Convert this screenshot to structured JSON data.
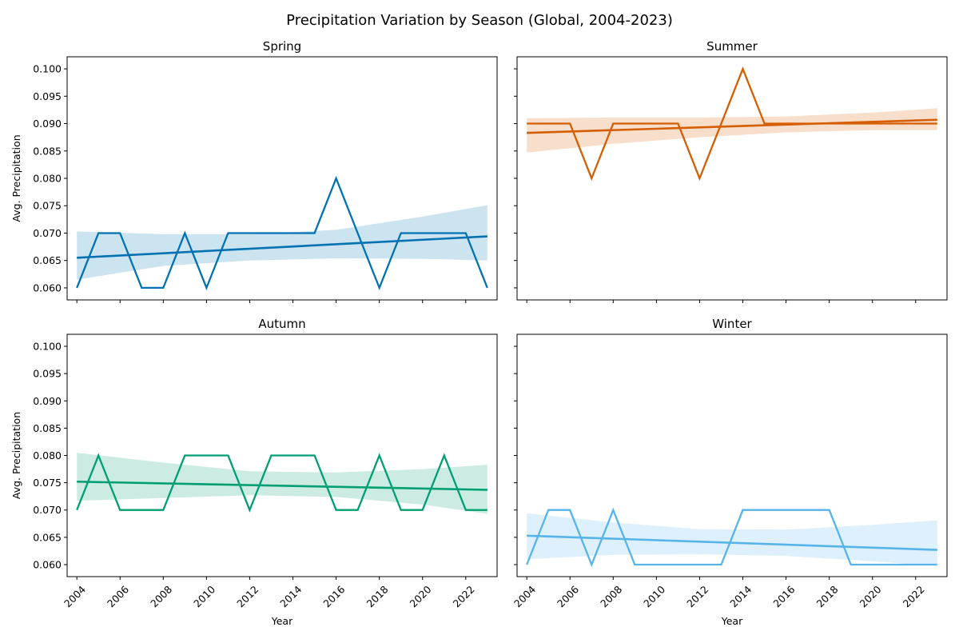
{
  "figure": {
    "title": "Precipitation Variation by Season (Global, 2004-2023)"
  },
  "chart_data": [
    {
      "type": "line",
      "title": "Spring",
      "xlabel": "",
      "ylabel": "Avg. Precipitation",
      "color": "#0072b2",
      "x": [
        2004,
        2005,
        2006,
        2007,
        2008,
        2009,
        2010,
        2011,
        2012,
        2013,
        2014,
        2015,
        2016,
        2017,
        2018,
        2019,
        2020,
        2021,
        2022,
        2023
      ],
      "values": [
        0.06,
        0.07,
        0.07,
        0.06,
        0.06,
        0.07,
        0.06,
        0.07,
        0.07,
        0.07,
        0.07,
        0.07,
        0.08,
        0.07,
        0.06,
        0.07,
        0.07,
        0.07,
        0.07,
        0.06
      ],
      "trend": [
        0.0655,
        0.0694
      ],
      "band": {
        "x": [
          2004,
          2008,
          2012,
          2016,
          2020,
          2023
        ],
        "lower": [
          0.0615,
          0.064,
          0.065,
          0.0654,
          0.0653,
          0.065
        ],
        "upper": [
          0.0703,
          0.0698,
          0.0698,
          0.0706,
          0.073,
          0.0751
        ]
      },
      "xlim": [
        2003.55,
        2023.45
      ],
      "ylim": [
        0.0578,
        0.1022
      ],
      "xticks": [
        2004,
        2006,
        2008,
        2010,
        2012,
        2014,
        2016,
        2018,
        2020,
        2022
      ],
      "yticks": [
        "0.060",
        "0.065",
        "0.070",
        "0.075",
        "0.080",
        "0.085",
        "0.090",
        "0.095",
        "0.100"
      ],
      "show_xticklabels": false,
      "show_yticklabels": true
    },
    {
      "type": "line",
      "title": "Summer",
      "xlabel": "",
      "ylabel": "",
      "color": "#d55e00",
      "x": [
        2004,
        2005,
        2006,
        2007,
        2008,
        2009,
        2010,
        2011,
        2012,
        2013,
        2014,
        2015,
        2016,
        2017,
        2018,
        2019,
        2020,
        2021,
        2022,
        2023
      ],
      "values": [
        0.09,
        0.09,
        0.09,
        0.08,
        0.09,
        0.09,
        0.09,
        0.09,
        0.08,
        0.09,
        0.1,
        0.09,
        0.09,
        0.09,
        0.09,
        0.09,
        0.09,
        0.09,
        0.09,
        0.09
      ],
      "trend": [
        0.0883,
        0.0907
      ],
      "band": {
        "x": [
          2004,
          2008,
          2012,
          2016,
          2020,
          2023
        ],
        "lower": [
          0.0847,
          0.0863,
          0.0875,
          0.0884,
          0.0888,
          0.0888
        ],
        "upper": [
          0.091,
          0.0911,
          0.0911,
          0.0913,
          0.092,
          0.0928
        ]
      },
      "xlim": [
        2003.55,
        2023.45
      ],
      "ylim": [
        0.0578,
        0.1022
      ],
      "xticks": [
        2004,
        2006,
        2008,
        2010,
        2012,
        2014,
        2016,
        2018,
        2020,
        2022
      ],
      "yticks": [
        "0.060",
        "0.065",
        "0.070",
        "0.075",
        "0.080",
        "0.085",
        "0.090",
        "0.095",
        "0.100"
      ],
      "show_xticklabels": false,
      "show_yticklabels": false
    },
    {
      "type": "line",
      "title": "Autumn",
      "xlabel": "Year",
      "ylabel": "Avg. Precipitation",
      "color": "#009e73",
      "x": [
        2004,
        2005,
        2006,
        2007,
        2008,
        2009,
        2010,
        2011,
        2012,
        2013,
        2014,
        2015,
        2016,
        2017,
        2018,
        2019,
        2020,
        2021,
        2022,
        2023
      ],
      "values": [
        0.07,
        0.08,
        0.07,
        0.07,
        0.07,
        0.08,
        0.08,
        0.08,
        0.07,
        0.08,
        0.08,
        0.08,
        0.07,
        0.07,
        0.08,
        0.07,
        0.07,
        0.08,
        0.07,
        0.07
      ],
      "trend": [
        0.0752,
        0.0737
      ],
      "band": {
        "x": [
          2004,
          2008,
          2012,
          2016,
          2020,
          2023
        ],
        "lower": [
          0.0717,
          0.0722,
          0.0727,
          0.0724,
          0.071,
          0.0693
        ],
        "upper": [
          0.0805,
          0.0787,
          0.0771,
          0.0769,
          0.0775,
          0.0783
        ]
      },
      "xlim": [
        2003.55,
        2023.45
      ],
      "ylim": [
        0.0578,
        0.1022
      ],
      "xticks": [
        2004,
        2006,
        2008,
        2010,
        2012,
        2014,
        2016,
        2018,
        2020,
        2022
      ],
      "yticks": [
        "0.060",
        "0.065",
        "0.070",
        "0.075",
        "0.080",
        "0.085",
        "0.090",
        "0.095",
        "0.100"
      ],
      "show_xticklabels": true,
      "show_yticklabels": true
    },
    {
      "type": "line",
      "title": "Winter",
      "xlabel": "Year",
      "ylabel": "",
      "color": "#56b4e9",
      "x": [
        2004,
        2005,
        2006,
        2007,
        2008,
        2009,
        2010,
        2011,
        2012,
        2013,
        2014,
        2015,
        2016,
        2017,
        2018,
        2019,
        2020,
        2021,
        2022,
        2023
      ],
      "values": [
        0.06,
        0.07,
        0.07,
        0.06,
        0.07,
        0.06,
        0.06,
        0.06,
        0.06,
        0.06,
        0.07,
        0.07,
        0.07,
        0.07,
        0.07,
        0.06,
        0.06,
        0.06,
        0.06,
        0.06
      ],
      "trend": [
        0.0653,
        0.0627
      ],
      "band": {
        "x": [
          2004,
          2008,
          2012,
          2016,
          2020,
          2023
        ],
        "lower": [
          0.061,
          0.0618,
          0.0619,
          0.0616,
          0.0606,
          0.0598
        ],
        "upper": [
          0.0694,
          0.0677,
          0.0665,
          0.0664,
          0.0673,
          0.0681
        ]
      },
      "xlim": [
        2003.55,
        2023.45
      ],
      "ylim": [
        0.0578,
        0.1022
      ],
      "xticks": [
        2004,
        2006,
        2008,
        2010,
        2012,
        2014,
        2016,
        2018,
        2020,
        2022
      ],
      "yticks": [
        "0.060",
        "0.065",
        "0.070",
        "0.075",
        "0.080",
        "0.085",
        "0.090",
        "0.095",
        "0.100"
      ],
      "show_xticklabels": true,
      "show_yticklabels": false
    }
  ]
}
